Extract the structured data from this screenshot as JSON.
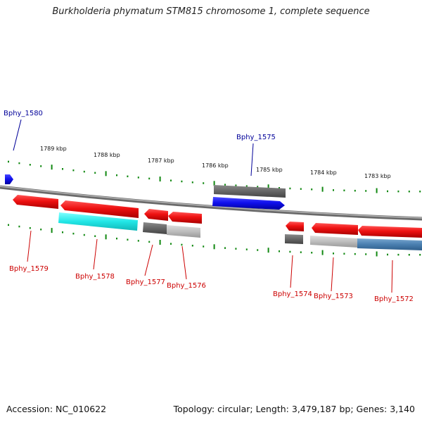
{
  "title": "Burkholderia phymatum STM815 chromosome 1, complete sequence",
  "footer": {
    "accession": "Accession: NC_010622",
    "topology": "Topology: circular; Length: 3,479,187 bp; Genes: 3,140"
  },
  "ruler": [
    "1789 kbp",
    "1788 kbp",
    "1787 kbp",
    "1786 kbp",
    "1785 kbp",
    "1784 kbp",
    "1783 kbp"
  ],
  "genes": [
    {
      "id": "Bphy_1580",
      "strand": "+",
      "color": "#1111ee"
    },
    {
      "id": "Bphy_1575",
      "strand": "+",
      "color": "#1111ee"
    },
    {
      "id": "Bphy_1579",
      "strand": "-",
      "color": "#ee1111"
    },
    {
      "id": "Bphy_1578",
      "strand": "-",
      "color": "#ee1111"
    },
    {
      "id": "Bphy_1577",
      "strand": "-",
      "color": "#ee1111"
    },
    {
      "id": "Bphy_1576",
      "strand": "-",
      "color": "#ee1111"
    },
    {
      "id": "Bphy_1574",
      "strand": "-",
      "color": "#ee1111"
    },
    {
      "id": "Bphy_1573",
      "strand": "-",
      "color": "#ee1111"
    },
    {
      "id": "Bphy_1572",
      "strand": "-",
      "color": "#ee1111"
    }
  ],
  "colors": {
    "forward_label": "#000099",
    "reverse_label": "#cc0000",
    "tick": "#118811",
    "backbone": "#888888",
    "cyan": "#22e6e6",
    "steel_blue": "#4a7fb0",
    "dark_gray": "#666666",
    "light_gray": "#bdbdbd"
  }
}
